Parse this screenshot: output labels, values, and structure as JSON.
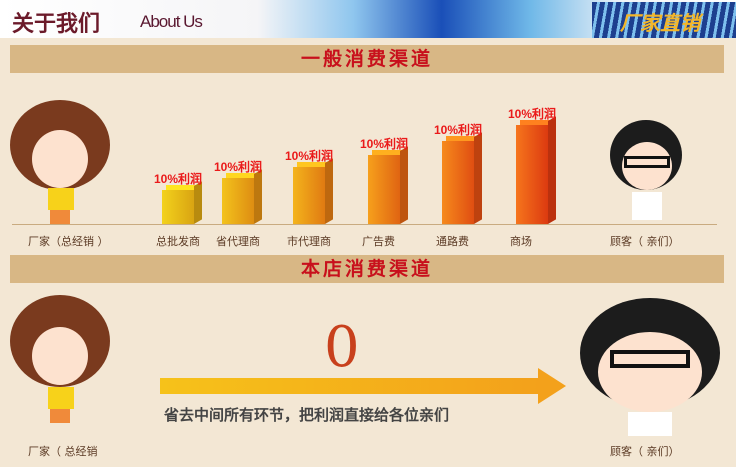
{
  "header": {
    "title_cn": "关于我们",
    "title_en": "About Us",
    "badge": "厂家直销"
  },
  "section1": {
    "title": "一般消费渠道",
    "start_label": "厂家（总经销 ）",
    "end_label": "顾客（ 亲们）",
    "bars": [
      {
        "label": "总批发商",
        "profit": "10%利润",
        "level": 1
      },
      {
        "label": "省代理商",
        "profit": "10%利润",
        "level": 2
      },
      {
        "label": "市代理商",
        "profit": "10%利润",
        "level": 3
      },
      {
        "label": "广告费",
        "profit": "10%利润",
        "level": 4
      },
      {
        "label": "通路费",
        "profit": "10%利润",
        "level": 5
      },
      {
        "label": "商场",
        "profit": "10%利润",
        "level": 6
      }
    ]
  },
  "section2": {
    "title": "本店消费渠道",
    "big_number": "0",
    "slogan": "省去中间所有环节，把利润直接给各位亲们",
    "start_label": "厂家（ 总经销",
    "end_label": "顾客（ 亲们）"
  }
}
